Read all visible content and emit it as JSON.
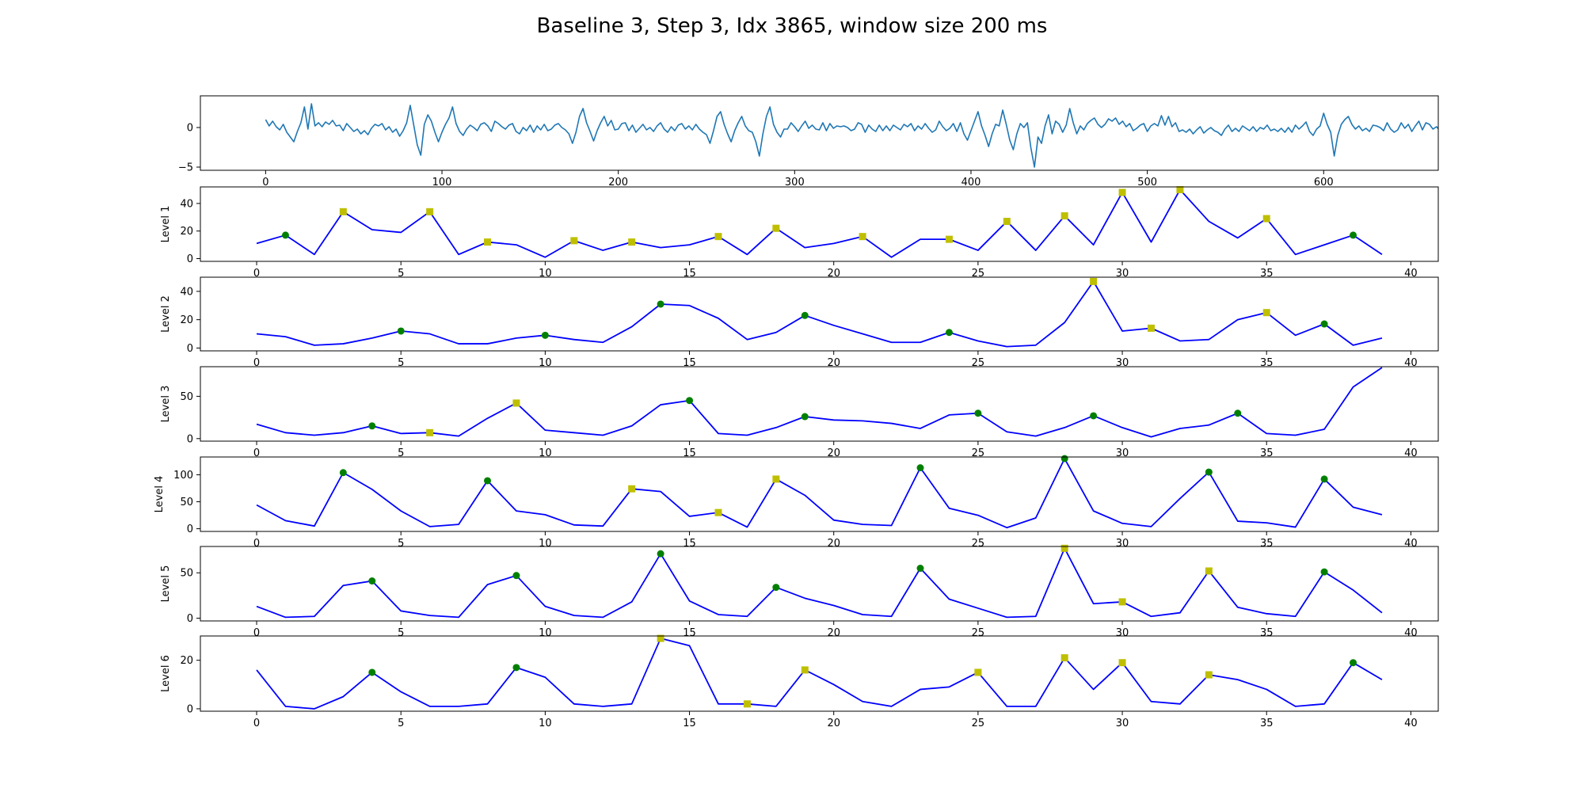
{
  "title": "Baseline 3, Step 3, Idx 3865, window size 200 ms",
  "colors": {
    "signal": "#1f77b4",
    "level_line": "#0000ff",
    "marker_green": "#008000",
    "marker_yellow": "#bfbf00",
    "axes": "#000000",
    "background": "#ffffff"
  },
  "chart_data": [
    {
      "type": "line",
      "name": "signal",
      "ylabel": "",
      "xlim": [
        -37,
        665
      ],
      "ylim": [
        -5.4,
        4.0
      ],
      "xticks": [
        0,
        100,
        200,
        300,
        400,
        500,
        600
      ],
      "yticks": [
        0,
        -5
      ],
      "x_start": 0,
      "x_step": 2,
      "y": [
        1.0,
        0.2,
        0.8,
        0.1,
        -0.3,
        0.4,
        -0.6,
        -1.2,
        -1.8,
        -0.5,
        0.6,
        2.6,
        -0.2,
        3.0,
        0.2,
        0.6,
        0.1,
        0.7,
        0.4,
        0.9,
        0.2,
        0.3,
        -0.4,
        0.5,
        0.0,
        -0.5,
        -0.2,
        -0.8,
        -0.4,
        -0.9,
        -0.1,
        0.4,
        0.2,
        0.5,
        -0.3,
        0.1,
        -0.6,
        -0.2,
        -1.1,
        -0.4,
        0.6,
        2.8,
        0.3,
        -2.2,
        -3.5,
        0.4,
        1.6,
        0.8,
        -0.6,
        -1.8,
        -0.6,
        0.4,
        1.2,
        2.6,
        0.5,
        -0.5,
        -1.0,
        -0.2,
        0.3,
        0.0,
        -0.4,
        0.4,
        0.6,
        0.2,
        -0.5,
        0.8,
        0.5,
        0.1,
        -0.2,
        0.3,
        0.5,
        -0.5,
        -0.8,
        0.0,
        -0.4,
        0.3,
        -0.6,
        0.2,
        -0.3,
        0.4,
        -0.4,
        -0.2,
        0.3,
        0.5,
        0.0,
        -0.3,
        -0.8,
        -2.0,
        -0.6,
        1.4,
        2.4,
        0.6,
        -0.5,
        -1.7,
        -0.4,
        0.6,
        1.4,
        0.2,
        0.9,
        -0.3,
        -0.2,
        0.5,
        0.6,
        -0.4,
        0.3,
        -0.6,
        -0.1,
        0.4,
        -0.3,
        0.0,
        -0.5,
        0.2,
        0.6,
        -0.2,
        -0.6,
        0.1,
        -0.4,
        0.3,
        0.5,
        -0.2,
        0.2,
        -0.3,
        0.4,
        -0.2,
        -0.6,
        -0.9,
        -2.0,
        -0.4,
        1.4,
        2.0,
        0.4,
        -0.8,
        -1.8,
        -0.4,
        0.6,
        1.4,
        0.2,
        -0.4,
        -0.6,
        -1.8,
        -3.6,
        -0.8,
        1.4,
        2.6,
        0.4,
        -0.6,
        -1.2,
        -0.2,
        -0.2,
        0.6,
        0.1,
        -0.5,
        0.2,
        0.8,
        -0.1,
        0.3,
        -0.2,
        -0.3,
        0.6,
        -0.4,
        0.5,
        -0.1,
        0.2,
        0.1,
        0.2,
        0.0,
        -0.4,
        -0.2,
        0.6,
        0.4,
        -0.6,
        0.3,
        -0.2,
        -0.5,
        0.3,
        -0.4,
        0.2,
        -0.4,
        0.3,
        0.0,
        -0.3,
        0.4,
        0.1,
        0.5,
        -0.4,
        0.2,
        -0.2,
        0.5,
        -0.1,
        -0.6,
        -0.3,
        0.8,
        0.1,
        -0.4,
        -0.1,
        0.5,
        -0.5,
        0.6,
        -0.8,
        -1.6,
        -0.4,
        0.8,
        2.0,
        0.2,
        -1.0,
        -2.4,
        -0.8,
        0.4,
        0.2,
        2.2,
        0.4,
        -1.6,
        -2.8,
        -0.8,
        0.5,
        0.0,
        0.6,
        -2.6,
        -5.0,
        -1.2,
        -2.0,
        0.2,
        1.6,
        -0.8,
        0.8,
        0.4,
        -0.6,
        0.3,
        2.4,
        0.6,
        -0.8,
        0.2,
        -0.3,
        0.5,
        0.9,
        1.2,
        0.4,
        0.0,
        0.4,
        1.1,
        0.8,
        1.2,
        0.4,
        0.8,
        0.1,
        0.5,
        -0.4,
        -0.1,
        0.3,
        0.5,
        -0.5,
        0.2,
        0.5,
        0.2,
        1.5,
        0.3,
        1.4,
        0.1,
        0.6,
        -0.5,
        -0.3,
        -0.6,
        -0.2,
        -0.8,
        -0.3,
        0.1,
        -0.7,
        -0.3,
        0.0,
        -0.4,
        -0.6,
        -1.0,
        -0.2,
        0.3,
        -0.5,
        -0.1,
        -0.5,
        0.2,
        -0.1,
        -0.4,
        0.1,
        -0.5,
        0.0,
        -0.2,
        0.3,
        -0.4,
        -0.2,
        -0.5,
        -0.1,
        -0.6,
        0.0,
        -0.6,
        0.3,
        -0.2,
        0.2,
        0.7,
        -0.5,
        -1.0,
        -0.2,
        0.2,
        1.8,
        0.4,
        -0.6,
        -3.6,
        -1.0,
        0.4,
        1.0,
        1.4,
        0.4,
        -0.2,
        0.2,
        -0.4,
        -0.1,
        -0.5,
        0.3,
        0.2,
        0.0,
        -0.4,
        0.6,
        -0.2,
        -0.6,
        -0.3,
        0.6,
        -0.1,
        0.4,
        -0.5,
        0.2,
        0.8,
        -0.3,
        0.6,
        0.4,
        -0.2,
        0.1,
        -0.4,
        0.5,
        0.2,
        -0.3,
        0.3,
        -0.5,
        0.4,
        -0.1,
        -0.4,
        -0.2,
        0.6,
        -0.4,
        0.2,
        0.4,
        0.1,
        -0.3,
        0.3,
        -0.4,
        0.0,
        0.6,
        -0.5,
        0.3,
        -0.2,
        -0.5,
        -0.2,
        0.2,
        0.4,
        -0.3,
        0.2,
        -0.6,
        -0.9,
        -0.5,
        0.6,
        2.2,
        0.8,
        -0.4,
        -0.6,
        -0.8,
        -2.6,
        -3.6,
        -0.6,
        0.8,
        1.2,
        0.6,
        -0.2,
        0.4,
        -0.6,
        0.5,
        -0.3,
        0.2,
        -0.2,
        0.4,
        0.3,
        -0.2,
        0.5,
        0.6,
        0.2,
        0.5,
        -0.2,
        -0.4,
        -0.1,
        0.2,
        -0.3,
        0.3,
        -0.5,
        0.4,
        -0.2,
        0.5,
        -0.4,
        -0.8,
        -0.2,
        0.0,
        0.3,
        0.6,
        -0.4,
        0.2,
        -0.2,
        -0.6,
        -0.4,
        0.4,
        -0.3,
        -0.1,
        0.4,
        -0.2,
        -0.5,
        -1.0,
        0.2,
        -0.1,
        0.5,
        0.3,
        -0.3,
        0.3,
        0.6,
        -0.5,
        -0.9,
        -2.0,
        -0.6,
        0.6,
        2.4,
        0.8,
        -0.6,
        -2.0,
        -4.8,
        -1.2,
        0.6,
        0.8,
        1.8,
        0.4,
        -0.4,
        -0.3,
        2.2,
        0.4,
        -0.6,
        0.4,
        -0.2,
        1.8,
        0.2,
        -0.4,
        0.3,
        -0.2,
        1.6,
        0.2,
        -0.6,
        0.4,
        -0.3,
        0.2,
        -0.5,
        0.4,
        -0.2,
        0.0,
        -0.6,
        0.3,
        0.1,
        0.2,
        -0.4,
        0.6,
        -0.3,
        -0.5,
        0.4,
        0.0,
        -0.4,
        0.5,
        -0.3,
        0.2,
        -0.2,
        0.6,
        -0.4,
        -0.2,
        0.4,
        -0.3,
        0.2,
        -0.5,
        -0.3,
        0.2,
        -0.6,
        -0.2,
        0.4,
        0.0,
        -0.4,
        0.5,
        -0.2,
        -0.6,
        -0.9,
        -0.4,
        0.6,
        2.6,
        0.4,
        -0.8,
        -1.8,
        -4.4,
        -0.8,
        0.8,
        1.0,
        2.0,
        0.4,
        -0.3,
        -0.6,
        0.3,
        0.5,
        -0.2,
        0.4,
        0.2,
        -0.4,
        0.5,
        0.2,
        -0.2,
        0.4,
        0.6,
        0.1,
        0.2,
        -0.3,
        0.5,
        0.1,
        -0.5,
        -0.2,
        0.4,
        -0.1,
        0.1,
        0.3,
        -0.4,
        0.3,
        -0.2,
        -0.6,
        0.2,
        -0.3,
        -0.5,
        -0.1,
        0.5,
        -0.2,
        0.3,
        0.6,
        -0.4,
        -0.2,
        0.1,
        -0.6,
        -0.2,
        0.3,
        -0.5,
        -1.0,
        -0.4,
        0.5,
        1.4,
        0.2,
        -0.6,
        -0.4,
        -1.6,
        -0.2,
        0.6,
        0.4,
        1.6,
        0.6,
        -0.3,
        -0.6,
        -0.4,
        0.3,
        0.4,
        -0.2,
        0.3,
        -0.4,
        0.2,
        0.4,
        0.1,
        -0.4,
        -0.2,
        0.3,
        0.0,
        -0.6,
        0.4,
        -0.2,
        -0.5,
        -0.3,
        0.2,
        -0.4,
        -0.6,
        -0.2,
        -0.7,
        -0.3,
        0.2,
        -0.2,
        -0.5,
        -0.1,
        -0.4,
        0.0,
        0.2,
        -0.5,
        -0.2,
        0.4,
        -0.3,
        -0.8,
        -0.2,
        0.3,
        0.7,
        -0.2,
        -1.0,
        -1.6,
        -0.8,
        0.4,
        1.4,
        0.8,
        0.2,
        -0.4,
        1.2,
        -0.6,
        -1.4,
        -0.6,
        1.8,
        -0.4,
        1.4
      ]
    },
    {
      "type": "line",
      "ylabel": "Level 1",
      "xlim": [
        -1.95,
        40.95
      ],
      "ylim": [
        -2,
        52
      ],
      "xticks": [
        0,
        5,
        10,
        15,
        20,
        25,
        30,
        35,
        40
      ],
      "yticks": [
        0,
        20,
        40
      ],
      "x": [
        0,
        1,
        2,
        3,
        4,
        5,
        6,
        7,
        8,
        9,
        10,
        11,
        12,
        13,
        14,
        15,
        16,
        17,
        18,
        19,
        20,
        21,
        22,
        23,
        24,
        25,
        26,
        27,
        28,
        29,
        30,
        31,
        32,
        33,
        34,
        35,
        36,
        37,
        38,
        39
      ],
      "y": [
        11,
        17,
        3,
        34,
        21,
        19,
        34,
        3,
        12,
        10,
        1,
        13,
        6,
        12,
        8,
        10,
        16,
        3,
        22,
        8,
        11,
        16,
        1,
        14,
        14,
        6,
        27,
        6,
        31,
        10,
        48,
        12,
        50,
        27,
        15,
        29,
        3,
        10,
        17,
        3
      ],
      "green_markers": [
        1,
        38
      ],
      "yellow_markers": [
        3,
        6,
        8,
        11,
        13,
        16,
        18,
        21,
        24,
        26,
        28,
        30,
        32,
        35
      ]
    },
    {
      "type": "line",
      "ylabel": "Level 2",
      "xlim": [
        -1.95,
        40.95
      ],
      "ylim": [
        -2,
        50
      ],
      "xticks": [
        0,
        5,
        10,
        15,
        20,
        25,
        30,
        35,
        40
      ],
      "yticks": [
        0,
        20,
        40
      ],
      "x": [
        0,
        1,
        2,
        3,
        4,
        5,
        6,
        7,
        8,
        9,
        10,
        11,
        12,
        13,
        14,
        15,
        16,
        17,
        18,
        19,
        20,
        21,
        22,
        23,
        24,
        25,
        26,
        27,
        28,
        29,
        30,
        31,
        32,
        33,
        34,
        35,
        36,
        37,
        38,
        39
      ],
      "y": [
        10,
        8,
        2,
        3,
        7,
        12,
        10,
        3,
        3,
        7,
        9,
        6,
        4,
        15,
        31,
        30,
        21,
        6,
        11,
        23,
        16,
        10,
        4,
        4,
        11,
        5,
        1,
        2,
        18,
        47,
        12,
        14,
        5,
        6,
        20,
        25,
        9,
        17,
        2,
        7
      ],
      "green_markers": [
        5,
        10,
        14,
        19,
        24,
        37
      ],
      "yellow_markers": [
        29,
        31,
        35
      ]
    },
    {
      "type": "line",
      "ylabel": "Level 3",
      "xlim": [
        -1.95,
        40.95
      ],
      "ylim": [
        -3,
        85
      ],
      "xticks": [
        0,
        5,
        10,
        15,
        20,
        25,
        30,
        35,
        40
      ],
      "yticks": [
        0,
        50
      ],
      "x": [
        0,
        1,
        2,
        3,
        4,
        5,
        6,
        7,
        8,
        9,
        10,
        11,
        12,
        13,
        14,
        15,
        16,
        17,
        18,
        19,
        20,
        21,
        22,
        23,
        24,
        25,
        26,
        27,
        28,
        29,
        30,
        31,
        32,
        33,
        34,
        35,
        36,
        37,
        38,
        39
      ],
      "y": [
        17,
        7,
        4,
        7,
        15,
        6,
        7,
        3,
        24,
        42,
        10,
        7,
        4,
        15,
        40,
        45,
        6,
        4,
        13,
        26,
        22,
        21,
        18,
        12,
        28,
        30,
        8,
        3,
        13,
        27,
        13,
        2,
        12,
        16,
        30,
        6,
        4,
        11,
        61,
        84
      ],
      "green_markers": [
        4,
        15,
        19,
        25,
        29,
        34
      ],
      "yellow_markers": [
        6,
        9
      ]
    },
    {
      "type": "line",
      "ylabel": "Level 4",
      "xlim": [
        -1.95,
        40.95
      ],
      "ylim": [
        -5,
        133
      ],
      "xticks": [
        0,
        5,
        10,
        15,
        20,
        25,
        30,
        35,
        40
      ],
      "yticks": [
        0,
        50,
        100
      ],
      "x": [
        0,
        1,
        2,
        3,
        4,
        5,
        6,
        7,
        8,
        9,
        10,
        11,
        12,
        13,
        14,
        15,
        16,
        17,
        18,
        19,
        20,
        21,
        22,
        23,
        24,
        25,
        26,
        27,
        28,
        29,
        30,
        31,
        32,
        33,
        34,
        35,
        36,
        37,
        38,
        39
      ],
      "y": [
        44,
        15,
        5,
        104,
        73,
        33,
        4,
        8,
        89,
        33,
        26,
        7,
        5,
        74,
        69,
        23,
        30,
        3,
        92,
        62,
        16,
        8,
        6,
        113,
        38,
        25,
        2,
        20,
        130,
        33,
        10,
        4,
        56,
        105,
        14,
        11,
        3,
        92,
        40,
        26
      ],
      "green_markers": [
        3,
        8,
        23,
        28,
        33,
        37
      ],
      "yellow_markers": [
        13,
        16,
        18
      ]
    },
    {
      "type": "line",
      "ylabel": "Level 5",
      "xlim": [
        -1.95,
        40.95
      ],
      "ylim": [
        -3,
        79
      ],
      "xticks": [
        0,
        5,
        10,
        15,
        20,
        25,
        30,
        35,
        40
      ],
      "yticks": [
        0,
        50
      ],
      "x": [
        0,
        1,
        2,
        3,
        4,
        5,
        6,
        7,
        8,
        9,
        10,
        11,
        12,
        13,
        14,
        15,
        16,
        17,
        18,
        19,
        20,
        21,
        22,
        23,
        24,
        25,
        26,
        27,
        28,
        29,
        30,
        31,
        32,
        33,
        34,
        35,
        36,
        37,
        38,
        39
      ],
      "y": [
        13,
        1,
        2,
        36,
        41,
        8,
        3,
        1,
        37,
        47,
        13,
        3,
        1,
        18,
        71,
        19,
        4,
        2,
        34,
        22,
        14,
        4,
        2,
        55,
        21,
        11,
        1,
        2,
        77,
        16,
        18,
        2,
        6,
        52,
        12,
        5,
        2,
        51,
        31,
        6
      ],
      "green_markers": [
        4,
        9,
        14,
        18,
        23,
        37
      ],
      "yellow_markers": [
        28,
        30,
        33
      ]
    },
    {
      "type": "line",
      "ylabel": "Level 6",
      "xlim": [
        -1.95,
        40.95
      ],
      "ylim": [
        -1,
        30
      ],
      "xticks": [
        0,
        5,
        10,
        15,
        20,
        25,
        30,
        35,
        40
      ],
      "yticks": [
        0,
        20
      ],
      "x": [
        0,
        1,
        2,
        3,
        4,
        5,
        6,
        7,
        8,
        9,
        10,
        11,
        12,
        13,
        14,
        15,
        16,
        17,
        18,
        19,
        20,
        21,
        22,
        23,
        24,
        25,
        26,
        27,
        28,
        29,
        30,
        31,
        32,
        33,
        34,
        35,
        36,
        37,
        38,
        39
      ],
      "y": [
        16,
        1,
        0,
        5,
        15,
        7,
        1,
        1,
        2,
        17,
        13,
        2,
        1,
        2,
        29,
        26,
        2,
        2,
        1,
        16,
        10,
        3,
        1,
        8,
        9,
        15,
        1,
        1,
        21,
        8,
        19,
        3,
        2,
        14,
        12,
        8,
        1,
        2,
        19,
        12
      ],
      "green_markers": [
        4,
        9,
        38
      ],
      "yellow_markers": [
        14,
        17,
        19,
        25,
        28,
        30,
        33
      ]
    }
  ]
}
